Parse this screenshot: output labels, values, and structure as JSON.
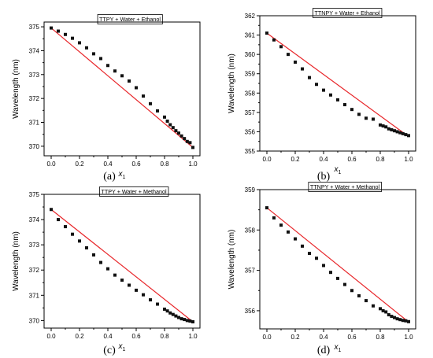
{
  "chart_data": [
    {
      "type": "scatter",
      "panel_label": "(a)",
      "xlabel": "x",
      "xlabel_sub": "1",
      "ylabel": "Wavelength (nm)",
      "legend": "TTPY + Water + Ethanol",
      "xlim": [
        -0.05,
        1.05
      ],
      "ylim": [
        369.6,
        375.2
      ],
      "xticks": [
        "0.0",
        "0.2",
        "0.4",
        "0.6",
        "0.8",
        "1.0"
      ],
      "yticks": [
        "370",
        "371",
        "372",
        "373",
        "374",
        "375"
      ],
      "series": [
        {
          "x": [
            0.0,
            0.05,
            0.1,
            0.15,
            0.2,
            0.25,
            0.3,
            0.35,
            0.4,
            0.45,
            0.5,
            0.55,
            0.6,
            0.65,
            0.7,
            0.75,
            0.8,
            0.82,
            0.84,
            0.86,
            0.88,
            0.9,
            0.92,
            0.94,
            0.96,
            0.98,
            1.0
          ],
          "y": [
            374.95,
            374.82,
            374.68,
            374.52,
            374.33,
            374.12,
            373.87,
            373.67,
            373.38,
            373.15,
            372.95,
            372.73,
            372.45,
            372.1,
            371.78,
            371.48,
            371.22,
            371.05,
            370.9,
            370.78,
            370.65,
            370.55,
            370.43,
            370.32,
            370.2,
            370.15,
            369.95
          ]
        },
        {
          "x": [
            0.0,
            1.0
          ],
          "y": [
            374.95,
            369.95
          ],
          "color": "#e8262a"
        }
      ]
    },
    {
      "type": "scatter",
      "panel_label": "(b)",
      "xlabel": "x",
      "xlabel_sub": "1",
      "ylabel": "Wavelength (nm)",
      "legend": "TTNPY + Water + Ethanol",
      "xlim": [
        -0.05,
        1.05
      ],
      "ylim": [
        355.0,
        362.0
      ],
      "xticks": [
        "0.0",
        "0.2",
        "0.4",
        "0.6",
        "0.8",
        "1.0"
      ],
      "yticks": [
        "355",
        "356",
        "357",
        "358",
        "359",
        "360",
        "361",
        "362"
      ],
      "series": [
        {
          "x": [
            0.0,
            0.05,
            0.1,
            0.15,
            0.2,
            0.25,
            0.3,
            0.35,
            0.4,
            0.45,
            0.5,
            0.55,
            0.6,
            0.65,
            0.7,
            0.75,
            0.8,
            0.82,
            0.84,
            0.86,
            0.88,
            0.9,
            0.92,
            0.94,
            0.96,
            0.98,
            1.0
          ],
          "y": [
            361.1,
            360.75,
            360.4,
            360.0,
            359.6,
            359.25,
            358.8,
            358.45,
            358.15,
            357.9,
            357.65,
            357.4,
            357.15,
            356.9,
            356.7,
            356.65,
            356.35,
            356.3,
            356.25,
            356.15,
            356.1,
            356.05,
            356.0,
            355.95,
            355.9,
            355.85,
            355.8
          ]
        },
        {
          "x": [
            0.0,
            1.0
          ],
          "y": [
            361.1,
            355.75
          ],
          "color": "#e8262a"
        }
      ]
    },
    {
      "type": "scatter",
      "panel_label": "(c)",
      "xlabel": "x",
      "xlabel_sub": "1",
      "ylabel": "Wavelength (nm)",
      "legend": "TTPY + Water + Methanol",
      "xlim": [
        -0.05,
        1.05
      ],
      "ylim": [
        369.7,
        375.0
      ],
      "xticks": [
        "0.0",
        "0.2",
        "0.4",
        "0.6",
        "0.8",
        "1.0"
      ],
      "yticks": [
        "370",
        "371",
        "372",
        "373",
        "374",
        "375"
      ],
      "series": [
        {
          "x": [
            0.0,
            0.05,
            0.1,
            0.15,
            0.2,
            0.25,
            0.3,
            0.35,
            0.4,
            0.45,
            0.5,
            0.55,
            0.6,
            0.65,
            0.7,
            0.75,
            0.8,
            0.82,
            0.84,
            0.86,
            0.88,
            0.9,
            0.92,
            0.94,
            0.96,
            0.98,
            1.0
          ],
          "y": [
            374.4,
            374.0,
            373.72,
            373.42,
            373.15,
            372.88,
            372.6,
            372.3,
            372.05,
            371.8,
            371.6,
            371.4,
            371.2,
            371.02,
            370.82,
            370.65,
            370.45,
            370.38,
            370.3,
            370.24,
            370.18,
            370.12,
            370.07,
            370.04,
            370.0,
            369.98,
            369.95
          ]
        },
        {
          "x": [
            0.0,
            1.0
          ],
          "y": [
            374.4,
            369.95
          ],
          "color": "#e8262a"
        }
      ]
    },
    {
      "type": "scatter",
      "panel_label": "(d)",
      "xlabel": "x",
      "xlabel_sub": "1",
      "ylabel": "Wavelength (nm)",
      "legend": "TTNPY + Water + Methanol",
      "xlim": [
        -0.05,
        1.05
      ],
      "ylim": [
        355.55,
        359.0
      ],
      "xticks": [
        "0.0",
        "0.2",
        "0.4",
        "0.6",
        "0.8",
        "1.0"
      ],
      "yticks": [
        "356",
        "357",
        "358",
        "359"
      ],
      "series": [
        {
          "x": [
            0.0,
            0.05,
            0.1,
            0.15,
            0.2,
            0.25,
            0.3,
            0.35,
            0.4,
            0.45,
            0.5,
            0.55,
            0.6,
            0.65,
            0.7,
            0.75,
            0.8,
            0.82,
            0.84,
            0.86,
            0.88,
            0.9,
            0.92,
            0.94,
            0.96,
            0.98,
            1.0
          ],
          "y": [
            358.55,
            358.3,
            358.12,
            357.95,
            357.78,
            357.6,
            357.42,
            357.3,
            357.12,
            356.95,
            356.8,
            356.65,
            356.5,
            356.37,
            356.25,
            356.12,
            356.05,
            356.0,
            355.97,
            355.9,
            355.86,
            355.83,
            355.8,
            355.78,
            355.76,
            355.75,
            355.73
          ]
        },
        {
          "x": [
            0.0,
            1.0
          ],
          "y": [
            358.55,
            355.72
          ],
          "color": "#e8262a"
        }
      ]
    }
  ]
}
